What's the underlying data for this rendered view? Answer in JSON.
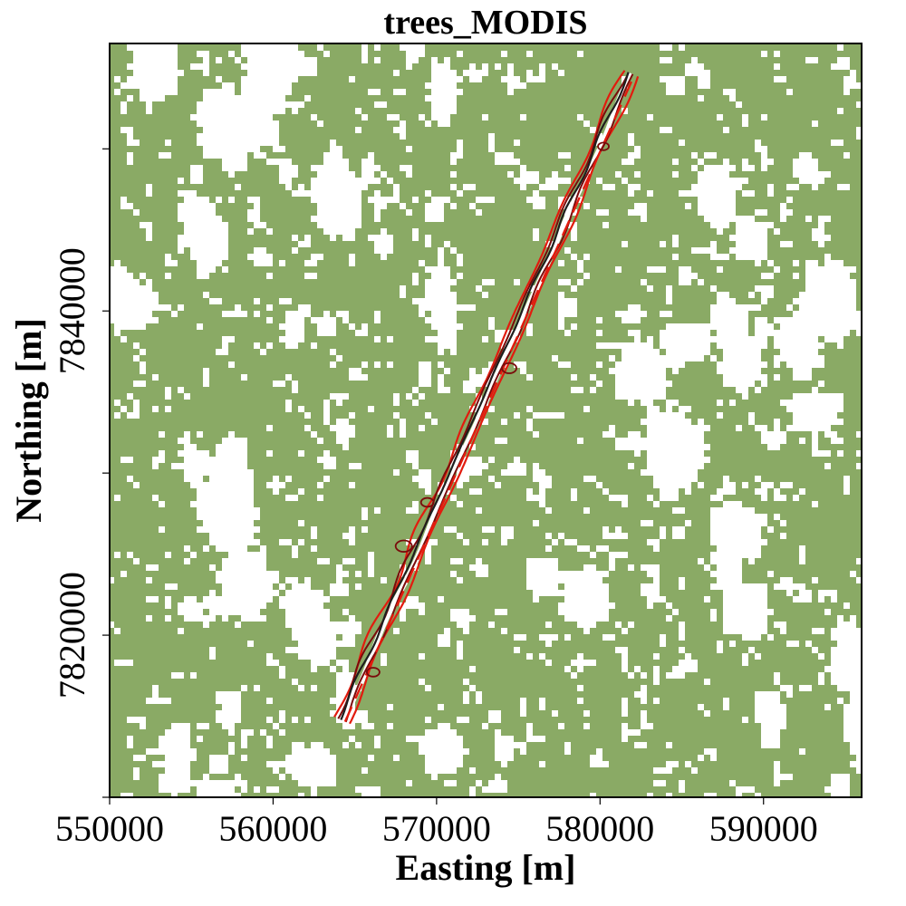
{
  "chart_data": {
    "type": "raster_map",
    "title": "trees_MODIS",
    "xlabel": "Easting [m]",
    "ylabel": "Northing [m]",
    "xlim": [
      550000,
      596000
    ],
    "ylim": [
      7810000,
      7856500
    ],
    "x_ticks": [
      550000,
      560000,
      570000,
      580000,
      590000
    ],
    "x_tick_labels": [
      "550000",
      "560000",
      "570000",
      "580000",
      "590000"
    ],
    "y_ticks": [
      7810000,
      7820000,
      7830000,
      7840000,
      7850000
    ],
    "y_tick_labels": [
      "",
      "7820000",
      "",
      "7840000",
      ""
    ],
    "colors": {
      "tree_cover": "#8aaa65",
      "no_tree": "#ffffff",
      "contour_outer": "#e21b0e",
      "contour_middle": "#7a0b0b",
      "contour_inner": "#1e1e1e",
      "track_dashed": "#e21b0e"
    },
    "track": {
      "start": [
        564100,
        7814800
      ],
      "end": [
        581800,
        7854700
      ]
    }
  }
}
